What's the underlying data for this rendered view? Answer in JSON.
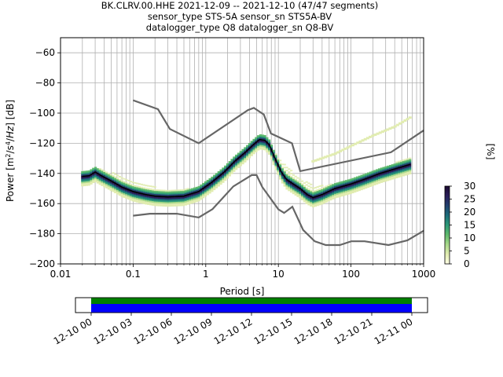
{
  "title_lines": [
    "BK.CLRV.00.HHE   2021-12-09 -- 2021-12-10  (47/47 segments)",
    "sensor_type STS-5A sensor_sn STS5A-BV",
    "datalogger_type Q8 datalogger_sn Q8-BV"
  ],
  "chart_data": {
    "type": "heatmap",
    "xlabel": "Period [s]",
    "ylabel_html": "Power [m²/s⁴/Hz] [dB]",
    "x_scale": "log",
    "xlim": [
      0.01,
      1000
    ],
    "ylim": [
      -200,
      -50
    ],
    "x_ticks": [
      {
        "value": 0.01,
        "label": "0.01"
      },
      {
        "value": 0.1,
        "label": "0.1"
      },
      {
        "value": 1,
        "label": "1"
      },
      {
        "value": 10,
        "label": "10"
      },
      {
        "value": 100,
        "label": "100"
      },
      {
        "value": 1000,
        "label": "1000"
      }
    ],
    "y_ticks": [
      {
        "value": -60,
        "label": "−60"
      },
      {
        "value": -80,
        "label": "−80"
      },
      {
        "value": -100,
        "label": "−100"
      },
      {
        "value": -120,
        "label": "−120"
      },
      {
        "value": -140,
        "label": "−140"
      },
      {
        "value": -160,
        "label": "−160"
      },
      {
        "value": -180,
        "label": "−180"
      },
      {
        "value": -200,
        "label": "−200"
      }
    ],
    "grid": true,
    "colorbar": {
      "label": "[%]",
      "range": [
        0,
        30
      ],
      "ticks": [
        "0",
        "5",
        "10",
        "15",
        "20",
        "25",
        "30"
      ],
      "colors": [
        "#ffffe5",
        "#e1ecb0",
        "#a8d98a",
        "#5fba6c",
        "#2d9a78",
        "#1c6d7a",
        "#22416f",
        "#2a1e5a",
        "#1b0a30"
      ]
    },
    "noise_models": [
      {
        "name": "NHNM",
        "points": [
          [
            0.1,
            -91.5
          ],
          [
            0.22,
            -97.4
          ],
          [
            0.32,
            -110.5
          ],
          [
            0.8,
            -120.0
          ],
          [
            3.8,
            -98.0
          ],
          [
            4.6,
            -96.5
          ],
          [
            6.3,
            -101.0
          ],
          [
            7.9,
            -113.5
          ],
          [
            15.4,
            -120.0
          ],
          [
            20.0,
            -138.5
          ],
          [
            354.8,
            -126.0
          ],
          [
            1000,
            -111.5
          ]
        ]
      },
      {
        "name": "NLNM",
        "points": [
          [
            0.1,
            -168.0
          ],
          [
            0.17,
            -166.7
          ],
          [
            0.4,
            -166.7
          ],
          [
            0.8,
            -169.2
          ],
          [
            1.24,
            -163.7
          ],
          [
            2.4,
            -148.6
          ],
          [
            4.3,
            -141.1
          ],
          [
            5.0,
            -141.1
          ],
          [
            6.0,
            -149.0
          ],
          [
            10.0,
            -163.8
          ],
          [
            12.0,
            -166.2
          ],
          [
            15.6,
            -162.1
          ],
          [
            21.9,
            -177.5
          ],
          [
            31.6,
            -185.0
          ],
          [
            45.0,
            -187.5
          ],
          [
            70.0,
            -187.5
          ],
          [
            101.0,
            -185.0
          ],
          [
            154.0,
            -185.0
          ],
          [
            328.0,
            -187.5
          ],
          [
            600.0,
            -184.4
          ],
          [
            1000,
            -178.0
          ]
        ]
      }
    ],
    "mode_curve": [
      [
        0.02,
        -142
      ],
      [
        0.025,
        -141.5
      ],
      [
        0.03,
        -139
      ],
      [
        0.035,
        -141
      ],
      [
        0.05,
        -145
      ],
      [
        0.07,
        -149
      ],
      [
        0.1,
        -152
      ],
      [
        0.15,
        -154
      ],
      [
        0.2,
        -155
      ],
      [
        0.3,
        -155.5
      ],
      [
        0.5,
        -155
      ],
      [
        0.8,
        -152
      ],
      [
        1.2,
        -146
      ],
      [
        1.8,
        -139
      ],
      [
        2.5,
        -132
      ],
      [
        3.5,
        -126
      ],
      [
        4.5,
        -121
      ],
      [
        5.5,
        -117.5
      ],
      [
        6.5,
        -118
      ],
      [
        7.5,
        -121
      ],
      [
        9.0,
        -130
      ],
      [
        11.0,
        -139
      ],
      [
        13.0,
        -144
      ],
      [
        16.0,
        -147
      ],
      [
        20.0,
        -150
      ],
      [
        25.0,
        -154
      ],
      [
        30.0,
        -156
      ],
      [
        40.0,
        -154
      ],
      [
        60.0,
        -150
      ],
      [
        100.0,
        -147
      ],
      [
        150.0,
        -144
      ],
      [
        250.0,
        -140
      ],
      [
        400.0,
        -137
      ],
      [
        650.0,
        -134
      ]
    ],
    "upper_tail_curve": [
      [
        0.02,
        -140
      ],
      [
        0.03,
        -136
      ],
      [
        0.05,
        -139
      ],
      [
        0.1,
        -145
      ],
      [
        0.2,
        -149
      ],
      [
        0.4,
        -150
      ],
      [
        0.8,
        -150
      ],
      [
        1.2,
        -144
      ],
      [
        2.0,
        -136
      ],
      [
        3.5,
        -125
      ],
      [
        5.5,
        -116
      ],
      [
        8.0,
        -122
      ],
      [
        10.0,
        -130
      ],
      [
        15.0,
        -138
      ],
      [
        20.0,
        -143
      ],
      [
        30.0,
        -148
      ],
      [
        60.0,
        -147
      ],
      [
        100.0,
        -145
      ],
      [
        200.0,
        -140
      ],
      [
        400.0,
        -133
      ],
      [
        650.0,
        -129
      ]
    ],
    "drift_band": [
      [
        30.0,
        -132
      ],
      [
        60.0,
        -127
      ],
      [
        120.0,
        -120
      ],
      [
        200.0,
        -115
      ],
      [
        400.0,
        -109
      ],
      [
        650.0,
        -103
      ]
    ],
    "time_axis": {
      "ticks": [
        "12-10 00",
        "12-10 03",
        "12-10 06",
        "12-10 09",
        "12-10 12",
        "12-10 15",
        "12-10 18",
        "12-10 21",
        "12-11 00"
      ],
      "coverage_colors": {
        "data": "#0000ff",
        "gap_free": "#008000"
      },
      "coverage": [
        [
          0,
          1
        ]
      ]
    }
  }
}
